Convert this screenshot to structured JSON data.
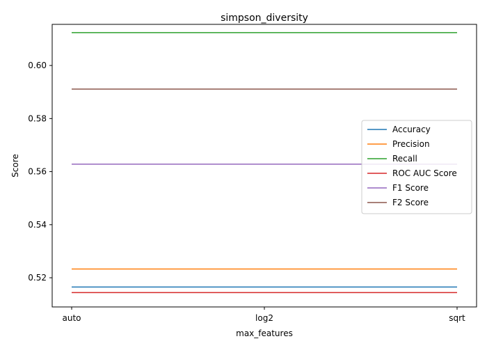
{
  "chart_data": {
    "type": "line",
    "title": "simpson_diversity",
    "xlabel": "max_features",
    "ylabel": "Score",
    "categories": [
      "auto",
      "log2",
      "sqrt"
    ],
    "ylim": [
      0.509,
      0.6155
    ],
    "yticks": [
      0.52,
      0.54,
      0.56,
      0.58,
      0.6
    ],
    "ytick_labels": [
      "0.52",
      "0.54",
      "0.56",
      "0.58",
      "0.60"
    ],
    "grid": false,
    "legend_position": "center-right",
    "series": [
      {
        "name": "Accuracy",
        "color": "#1f77b4",
        "values": [
          0.5165,
          0.5165,
          0.5165
        ]
      },
      {
        "name": "Precision",
        "color": "#ff7f0e",
        "values": [
          0.5233,
          0.5233,
          0.5233
        ]
      },
      {
        "name": "Recall",
        "color": "#2ca02c",
        "values": [
          0.6124,
          0.6124,
          0.6124
        ]
      },
      {
        "name": "ROC AUC Score",
        "color": "#d62728",
        "values": [
          0.5144,
          0.5144,
          0.5144
        ]
      },
      {
        "name": "F1 Score",
        "color": "#9467bd",
        "values": [
          0.5628,
          0.5628,
          0.5628
        ]
      },
      {
        "name": "F2 Score",
        "color": "#8c564b",
        "values": [
          0.5911,
          0.5911,
          0.5911
        ]
      }
    ]
  }
}
